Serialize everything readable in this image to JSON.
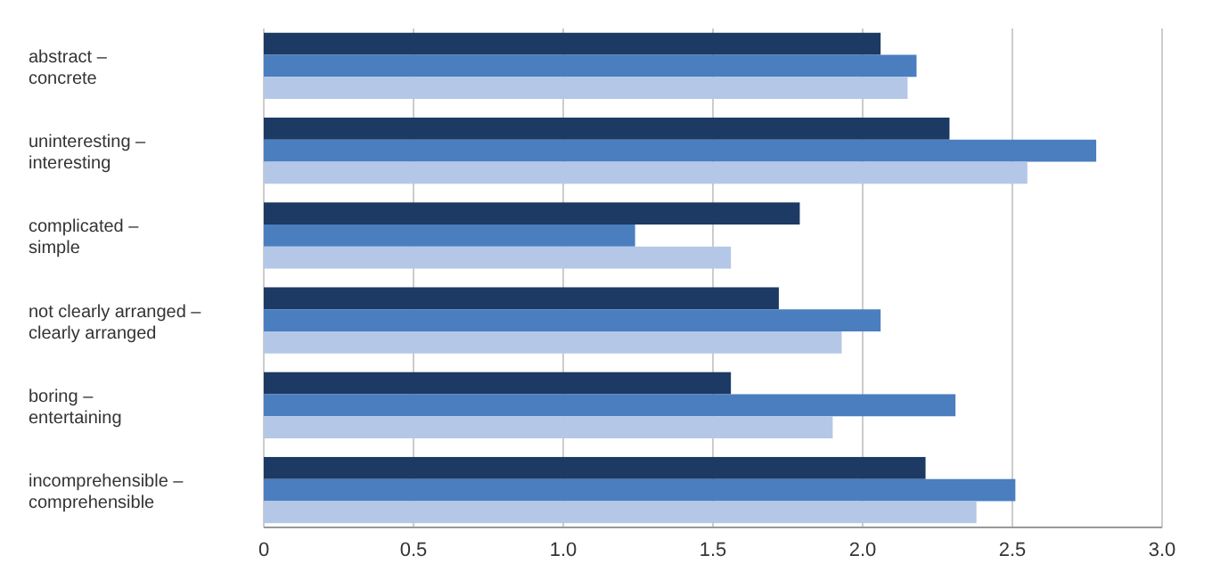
{
  "chart_data": {
    "type": "bar",
    "orientation": "horizontal",
    "categories": [
      "abstract – concrete",
      "uninteresting – interesting",
      "complicated – simple",
      "not clearly arranged – clearly arranged",
      "boring – entertaining",
      "incomprehensible – comprehensible"
    ],
    "series": [
      {
        "color": "#1c3a63",
        "values": [
          2.06,
          2.29,
          1.79,
          1.72,
          1.56,
          2.21
        ]
      },
      {
        "color": "#4a7ebf",
        "values": [
          2.18,
          2.78,
          1.24,
          2.06,
          2.31,
          2.51
        ]
      },
      {
        "color": "#b4c7e7",
        "values": [
          2.15,
          2.55,
          1.56,
          1.93,
          1.9,
          2.38
        ]
      }
    ],
    "xlim": [
      0,
      3
    ],
    "xticks": [
      0,
      0.5,
      {
        "value": 1,
        "label": "1.0"
      },
      1.5,
      {
        "value": 2,
        "label": "2.0"
      },
      2.5,
      {
        "value": 3,
        "label": "3.0"
      }
    ],
    "grid": "x"
  }
}
